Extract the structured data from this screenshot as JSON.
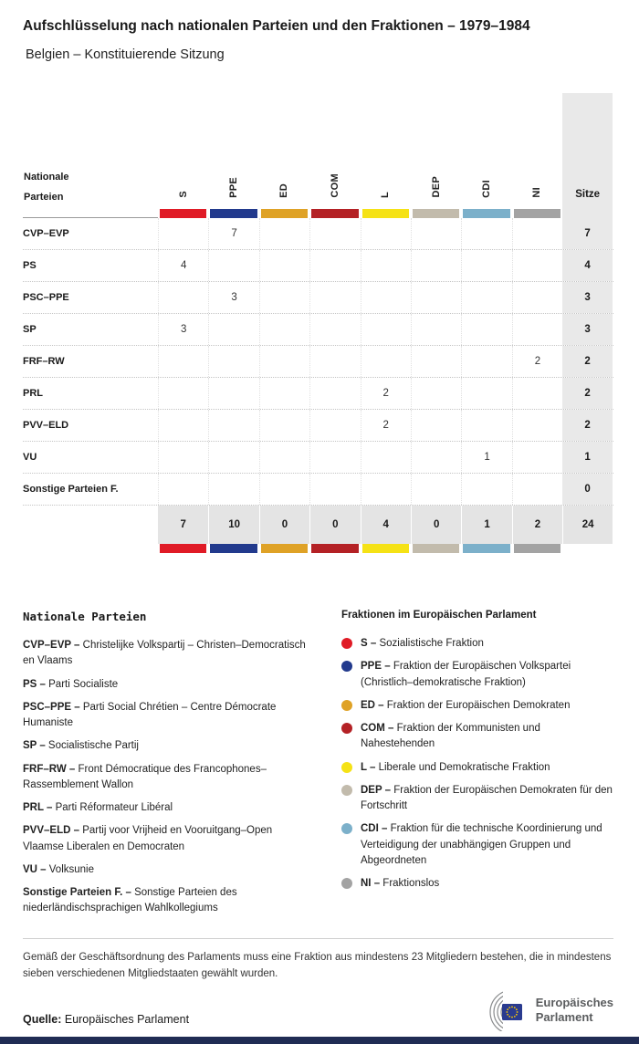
{
  "header": {
    "title": "Aufschlüsselung nach nationalen Parteien und den Fraktionen – 1979–1984",
    "subtitle": "Belgien – Konstituierende Sitzung"
  },
  "chart_data": {
    "type": "table",
    "title": "Aufschlüsselung nach nationalen Parteien und den Fraktionen – 1979–1984",
    "subtitle": "Belgien – Konstituierende Sitzung",
    "row_header": "Nationale Parteien",
    "seats_header": "Sitze",
    "group_columns": [
      {
        "code": "S",
        "color": "#e01b26"
      },
      {
        "code": "PPE",
        "color": "#223a8d"
      },
      {
        "code": "ED",
        "color": "#dfa226"
      },
      {
        "code": "COM",
        "color": "#b42125"
      },
      {
        "code": "L",
        "color": "#f5e216"
      },
      {
        "code": "DEP",
        "color": "#c2bbac"
      },
      {
        "code": "CDI",
        "color": "#7cb0ca"
      },
      {
        "code": "NI",
        "color": "#a3a3a3"
      }
    ],
    "rows": [
      {
        "party": "CVP–EVP",
        "values": [
          null,
          7,
          null,
          null,
          null,
          null,
          null,
          null
        ],
        "seats": 7
      },
      {
        "party": "PS",
        "values": [
          4,
          null,
          null,
          null,
          null,
          null,
          null,
          null
        ],
        "seats": 4
      },
      {
        "party": "PSC–PPE",
        "values": [
          null,
          3,
          null,
          null,
          null,
          null,
          null,
          null
        ],
        "seats": 3
      },
      {
        "party": "SP",
        "values": [
          3,
          null,
          null,
          null,
          null,
          null,
          null,
          null
        ],
        "seats": 3
      },
      {
        "party": "FRF–RW",
        "values": [
          null,
          null,
          null,
          null,
          null,
          null,
          null,
          2
        ],
        "seats": 2
      },
      {
        "party": "PRL",
        "values": [
          null,
          null,
          null,
          null,
          2,
          null,
          null,
          null
        ],
        "seats": 2
      },
      {
        "party": "PVV–ELD",
        "values": [
          null,
          null,
          null,
          null,
          2,
          null,
          null,
          null
        ],
        "seats": 2
      },
      {
        "party": "VU",
        "values": [
          null,
          null,
          null,
          null,
          null,
          null,
          1,
          null
        ],
        "seats": 1
      },
      {
        "party": "Sonstige Parteien F.",
        "values": [
          null,
          null,
          null,
          null,
          null,
          null,
          null,
          null
        ],
        "seats": 0
      }
    ],
    "totals": {
      "values": [
        7,
        10,
        0,
        0,
        4,
        0,
        1,
        2
      ],
      "seats": 24
    }
  },
  "legend": {
    "parties": {
      "title": "Nationale Parteien",
      "items": [
        {
          "abbr": "CVP–EVP",
          "text": "Christelijke Volkspartij – Christen–Democratisch en Vlaams"
        },
        {
          "abbr": "PS",
          "text": "Parti Socialiste"
        },
        {
          "abbr": "PSC–PPE",
          "text": "Parti Social Chrétien – Centre Démocrate Humaniste"
        },
        {
          "abbr": "SP",
          "text": "Socialistische Partij"
        },
        {
          "abbr": "FRF–RW",
          "text": "Front Démocratique des Francophones–Rassemblement Wallon"
        },
        {
          "abbr": "PRL",
          "text": "Parti Réformateur Libéral"
        },
        {
          "abbr": "PVV–ELD",
          "text": "Partij voor Vrijheid en Vooruitgang–Open Vlaamse Liberalen en Democraten"
        },
        {
          "abbr": "VU",
          "text": "Volksunie"
        },
        {
          "abbr": "Sonstige Parteien F.",
          "text": "Sonstige Parteien des niederländischsprachigen Wahlkollegiums"
        }
      ]
    },
    "groups": {
      "title": "Fraktionen im Europäischen Parlament",
      "items": [
        {
          "abbr": "S",
          "color": "#e01b26",
          "text": "Sozialistische Fraktion"
        },
        {
          "abbr": "PPE",
          "color": "#223a8d",
          "text": "Fraktion der Europäischen Volkspartei (Christlich–demokratische Fraktion)"
        },
        {
          "abbr": "ED",
          "color": "#dfa226",
          "text": "Fraktion der Europäischen Demokraten"
        },
        {
          "abbr": "COM",
          "color": "#b42125",
          "text": "Fraktion der Kommunisten und Nahestehenden"
        },
        {
          "abbr": "L",
          "color": "#f5e216",
          "text": "Liberale und Demokratische Fraktion"
        },
        {
          "abbr": "DEP",
          "color": "#c2bbac",
          "text": "Fraktion der Europäischen Demokraten für den Fortschritt"
        },
        {
          "abbr": "CDI",
          "color": "#7cb0ca",
          "text": "Fraktion für die technische Koordinierung und Verteidigung der unabhängigen Gruppen und Abgeordneten"
        },
        {
          "abbr": "NI",
          "color": "#a3a3a3",
          "text": "Fraktionslos"
        }
      ]
    }
  },
  "footer": {
    "note": "Gemäß der Geschäftsordnung des Parlaments muss eine Fraktion aus mindestens 23 Mitgliedern bestehen, die in mindestens sieben verschiedenen Mitgliedstaaten gewählt wurden.",
    "source_label": "Quelle:",
    "source_value": "Europäisches Parlament",
    "logo": {
      "line1": "Europäisches",
      "line2": "Parlament"
    }
  },
  "colors": {
    "bottom_bar": "#202c54",
    "seats_column_bg": "#e9e9e9",
    "totals_row_bg": "#e4e4e4",
    "eu_flag_blue": "#2a3b8f",
    "eu_star_yellow": "#ffcc00"
  }
}
